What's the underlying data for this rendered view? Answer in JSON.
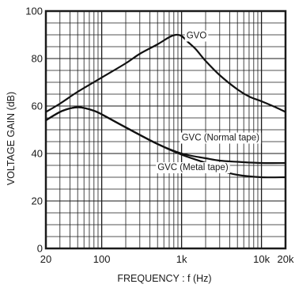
{
  "chart_data": {
    "type": "line",
    "title": "",
    "xlabel": "FREQUENCY : f (Hz)",
    "ylabel": "VOLTAGE GAIN (dB)",
    "xscale": "log",
    "xlim": [
      20,
      20000
    ],
    "ylim": [
      0,
      100
    ],
    "grid": true,
    "x_tick_labels": [
      {
        "value": 20,
        "label": "20"
      },
      {
        "value": 100,
        "label": "100"
      },
      {
        "value": 1000,
        "label": "1k"
      },
      {
        "value": 10000,
        "label": "10k"
      },
      {
        "value": 20000,
        "label": "20k"
      }
    ],
    "y_tick_labels": [
      {
        "value": 0,
        "label": "0"
      },
      {
        "value": 20,
        "label": "20"
      },
      {
        "value": 40,
        "label": "40"
      },
      {
        "value": 60,
        "label": "60"
      },
      {
        "value": 80,
        "label": "80"
      },
      {
        "value": 100,
        "label": "100"
      }
    ],
    "series": [
      {
        "name": "GVO",
        "x": [
          20,
          30,
          50,
          100,
          200,
          300,
          500,
          700,
          850,
          1000,
          1200,
          1500,
          2000,
          3000,
          5000,
          7000,
          10000,
          15000,
          20000
        ],
        "y": [
          57.5,
          61,
          66,
          72,
          78,
          82,
          86,
          89,
          90,
          89.5,
          87,
          84,
          79,
          73,
          67,
          64,
          62,
          59.5,
          57.5
        ]
      },
      {
        "name": "GVC (Normal tape)",
        "x": [
          20,
          30,
          40,
          50,
          60,
          80,
          100,
          200,
          500,
          1000,
          2000,
          3000,
          5000,
          10000,
          20000
        ],
        "y": [
          54,
          57.5,
          59,
          59.5,
          59.2,
          58,
          56.5,
          51,
          44,
          40,
          38,
          37,
          36.5,
          36,
          36
        ]
      },
      {
        "name": "GVC (Metal tape)",
        "x": [
          20,
          30,
          40,
          50,
          60,
          80,
          100,
          200,
          500,
          1000,
          2000,
          3000,
          5000,
          10000,
          20000
        ],
        "y": [
          54,
          57.5,
          59,
          59.5,
          59.2,
          58,
          56.5,
          51,
          44,
          39.5,
          36,
          33,
          31,
          30,
          30
        ]
      }
    ],
    "annotations": [
      {
        "text": "GVO",
        "series": "GVO"
      },
      {
        "text": "GVC (Normal tape)",
        "series": "GVC (Normal tape)"
      },
      {
        "text": "GVC (Metal tape)",
        "series": "GVC (Metal tape)"
      }
    ]
  }
}
